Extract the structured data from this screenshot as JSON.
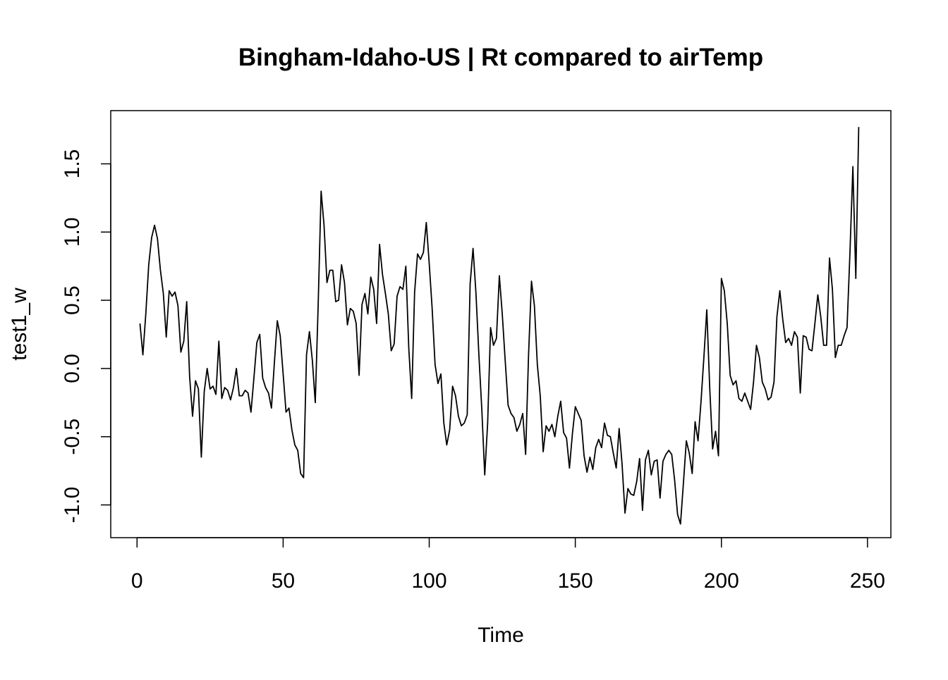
{
  "chart_data": {
    "type": "line",
    "title": "Bingham-Idaho-US | Rt compared to airTemp",
    "xlabel": "Time",
    "ylabel": "test1_w",
    "xlim": [
      -9,
      258
    ],
    "ylim": [
      -1.24,
      1.89
    ],
    "x_ticks": [
      0,
      50,
      100,
      150,
      200,
      250
    ],
    "x_tick_labels": [
      "0",
      "50",
      "100",
      "150",
      "200",
      "250"
    ],
    "y_ticks": [
      -1.0,
      -0.5,
      0.0,
      0.5,
      1.0,
      1.5
    ],
    "y_tick_labels": [
      "-1.0",
      "-0.5",
      "0.0",
      "0.5",
      "1.0",
      "1.5"
    ],
    "grid": false,
    "legend": "none",
    "line_color": "#000000",
    "series": [
      {
        "x_start": 1,
        "x_step": 1,
        "values": [
          0.33,
          0.1,
          0.4,
          0.76,
          0.96,
          1.05,
          0.95,
          0.72,
          0.55,
          0.23,
          0.57,
          0.53,
          0.56,
          0.46,
          0.12,
          0.2,
          0.49,
          -0.06,
          -0.35,
          -0.09,
          -0.15,
          -0.65,
          -0.17,
          0.0,
          -0.15,
          -0.13,
          -0.19,
          0.2,
          -0.22,
          -0.14,
          -0.16,
          -0.23,
          -0.14,
          0.0,
          -0.2,
          -0.2,
          -0.16,
          -0.18,
          -0.32,
          -0.07,
          0.19,
          0.25,
          -0.07,
          -0.14,
          -0.18,
          -0.29,
          0.04,
          0.35,
          0.24,
          -0.04,
          -0.32,
          -0.29,
          -0.45,
          -0.56,
          -0.6,
          -0.77,
          -0.8,
          0.1,
          0.27,
          0.06,
          -0.25,
          0.47,
          1.3,
          1.05,
          0.63,
          0.72,
          0.72,
          0.49,
          0.5,
          0.76,
          0.63,
          0.32,
          0.44,
          0.42,
          0.33,
          -0.05,
          0.47,
          0.55,
          0.4,
          0.67,
          0.58,
          0.33,
          0.91,
          0.69,
          0.55,
          0.4,
          0.13,
          0.18,
          0.53,
          0.6,
          0.58,
          0.75,
          0.15,
          -0.22,
          0.56,
          0.84,
          0.8,
          0.85,
          1.07,
          0.77,
          0.44,
          0.03,
          -0.11,
          -0.04,
          -0.4,
          -0.56,
          -0.45,
          -0.13,
          -0.2,
          -0.35,
          -0.42,
          -0.4,
          -0.34,
          0.62,
          0.88,
          0.55,
          0.1,
          -0.3,
          -0.78,
          -0.4,
          0.3,
          0.17,
          0.22,
          0.68,
          0.4,
          0.06,
          -0.27,
          -0.33,
          -0.36,
          -0.46,
          -0.41,
          -0.33,
          -0.63,
          0.1,
          0.64,
          0.46,
          0.03,
          -0.2,
          -0.61,
          -0.42,
          -0.46,
          -0.41,
          -0.5,
          -0.35,
          -0.24,
          -0.47,
          -0.51,
          -0.73,
          -0.48,
          -0.28,
          -0.33,
          -0.38,
          -0.64,
          -0.76,
          -0.65,
          -0.74,
          -0.58,
          -0.52,
          -0.58,
          -0.4,
          -0.49,
          -0.5,
          -0.62,
          -0.73,
          -0.44,
          -0.7,
          -1.06,
          -0.88,
          -0.92,
          -0.93,
          -0.83,
          -0.66,
          -1.04,
          -0.67,
          -0.6,
          -0.78,
          -0.68,
          -0.67,
          -0.95,
          -0.68,
          -0.63,
          -0.6,
          -0.63,
          -0.82,
          -1.07,
          -1.14,
          -0.84,
          -0.53,
          -0.62,
          -0.77,
          -0.39,
          -0.53,
          -0.25,
          0.08,
          0.43,
          -0.14,
          -0.59,
          -0.46,
          -0.64,
          0.66,
          0.57,
          0.33,
          -0.05,
          -0.12,
          -0.09,
          -0.22,
          -0.24,
          -0.18,
          -0.24,
          -0.3,
          -0.1,
          0.17,
          0.08,
          -0.1,
          -0.15,
          -0.23,
          -0.21,
          -0.1,
          0.38,
          0.57,
          0.36,
          0.19,
          0.22,
          0.17,
          0.27,
          0.23,
          -0.18,
          0.24,
          0.23,
          0.14,
          0.13,
          0.33,
          0.54,
          0.38,
          0.17,
          0.17,
          0.81,
          0.58,
          0.08,
          0.17,
          0.17,
          0.24,
          0.3,
          0.85,
          1.48,
          0.66,
          1.77
        ]
      }
    ]
  }
}
